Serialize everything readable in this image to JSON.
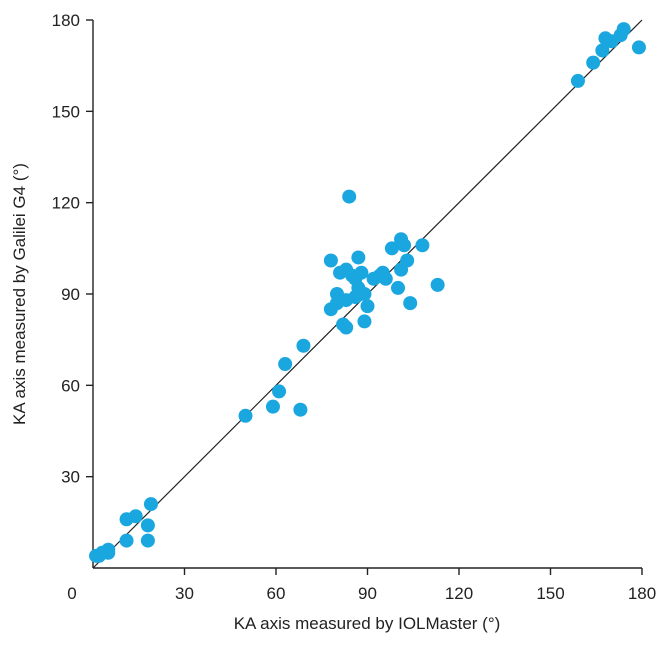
{
  "chart_data": {
    "type": "scatter",
    "title": "",
    "xlabel": "KA axis measured by IOLMaster (°)",
    "ylabel": "KA axis measured by Galilei G4 (°)",
    "xlim": [
      0,
      180
    ],
    "ylim": [
      0,
      180
    ],
    "xticks": [
      0,
      30,
      60,
      90,
      120,
      150,
      180
    ],
    "yticks": [
      30,
      60,
      90,
      120,
      150,
      180
    ],
    "grid": false,
    "legend": "none",
    "reference_line": {
      "from": [
        0,
        0
      ],
      "to": [
        180,
        180
      ],
      "color": "#222222"
    },
    "marker_color": "#1aa7e0",
    "points": [
      [
        1,
        4
      ],
      [
        2,
        4
      ],
      [
        3,
        5
      ],
      [
        5,
        6
      ],
      [
        5,
        5
      ],
      [
        11,
        16
      ],
      [
        11,
        9
      ],
      [
        14,
        17
      ],
      [
        18,
        9
      ],
      [
        18,
        14
      ],
      [
        19,
        21
      ],
      [
        50,
        50
      ],
      [
        59,
        53
      ],
      [
        61,
        58
      ],
      [
        63,
        67
      ],
      [
        68,
        52
      ],
      [
        69,
        73
      ],
      [
        78,
        85
      ],
      [
        78,
        101
      ],
      [
        80,
        87
      ],
      [
        80,
        90
      ],
      [
        81,
        97
      ],
      [
        82,
        80
      ],
      [
        83,
        79
      ],
      [
        83,
        88
      ],
      [
        83,
        98
      ],
      [
        84,
        122
      ],
      [
        85,
        96
      ],
      [
        86,
        89
      ],
      [
        86,
        95
      ],
      [
        87,
        102
      ],
      [
        87,
        92
      ],
      [
        88,
        97
      ],
      [
        89,
        81
      ],
      [
        89,
        90
      ],
      [
        90,
        86
      ],
      [
        92,
        95
      ],
      [
        94,
        96
      ],
      [
        95,
        97
      ],
      [
        96,
        95
      ],
      [
        98,
        105
      ],
      [
        100,
        92
      ],
      [
        101,
        108
      ],
      [
        101,
        98
      ],
      [
        102,
        106
      ],
      [
        103,
        101
      ],
      [
        104,
        87
      ],
      [
        108,
        106
      ],
      [
        113,
        93
      ],
      [
        159,
        160
      ],
      [
        164,
        166
      ],
      [
        167,
        170
      ],
      [
        168,
        174
      ],
      [
        170,
        173
      ],
      [
        173,
        175
      ],
      [
        174,
        177
      ],
      [
        179,
        171
      ]
    ]
  }
}
